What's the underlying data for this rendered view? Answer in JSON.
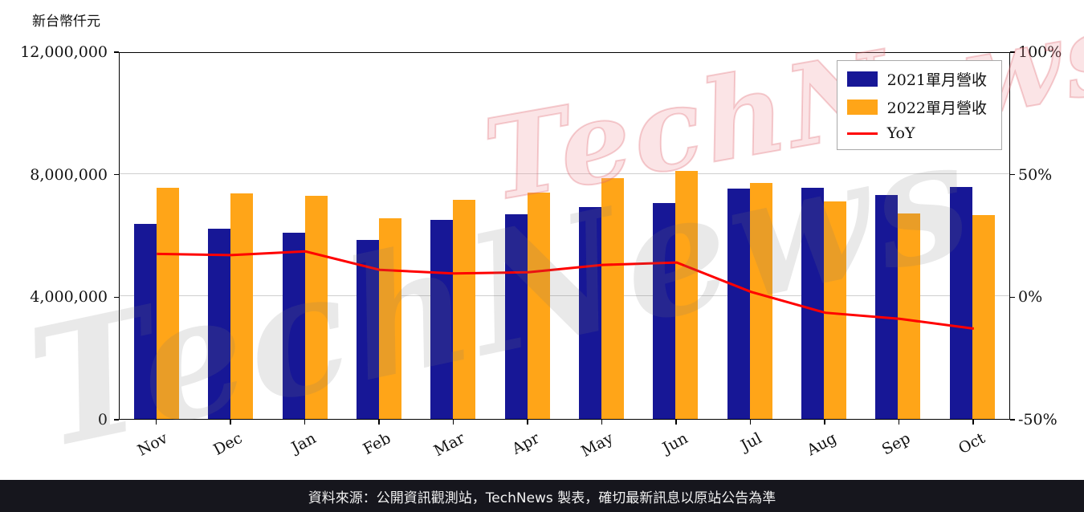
{
  "header": {
    "y_axis_unit_label": "新台幣仟元"
  },
  "watermark": {
    "text": "TechNews"
  },
  "footer": {
    "text": "資料來源：公開資訊觀測站，TechNews 製表，確切最新訊息以原站公告為準",
    "bg_color": "#16161d"
  },
  "colors": {
    "bar_2021": "#171796",
    "bar_2022": "#ffa518",
    "yoy_line": "#ff0000",
    "grid": "#cfcfcf",
    "axis": "#000000"
  },
  "chart_data": {
    "type": "bar",
    "title": "",
    "categories": [
      "Nov",
      "Dec",
      "Jan",
      "Feb",
      "Mar",
      "Apr",
      "May",
      "Jun",
      "Jul",
      "Aug",
      "Sep",
      "Oct"
    ],
    "series": [
      {
        "id": "2021-revenue",
        "name": "2021單月營收",
        "type": "bar",
        "color": "#171796",
        "axis": "left",
        "values": [
          6370000,
          6200000,
          6080000,
          5840000,
          6500000,
          6680000,
          6920000,
          7050000,
          7520000,
          7550000,
          7310000,
          7570000
        ]
      },
      {
        "id": "2022-revenue",
        "name": "2022單月營收",
        "type": "bar",
        "color": "#ffa518",
        "axis": "left",
        "values": [
          7540000,
          7360000,
          7280000,
          6550000,
          7150000,
          7390000,
          7850000,
          8100000,
          7700000,
          7100000,
          6720000,
          6650000
        ]
      },
      {
        "id": "yoy",
        "name": "YoY",
        "type": "line",
        "color": "#ff0000",
        "axis": "right",
        "values": [
          18.0,
          17.5,
          19.0,
          11.5,
          10.0,
          10.5,
          13.5,
          14.5,
          2.5,
          -6.0,
          -8.5,
          -12.5
        ]
      }
    ],
    "left_axis": {
      "min": 0,
      "max": 12000000,
      "tick_values": [
        0,
        4000000,
        8000000,
        12000000
      ],
      "ticks": [
        "0",
        "4,000,000",
        "8,000,000",
        "12,000,000"
      ]
    },
    "right_axis": {
      "min": -50,
      "max": 100,
      "tick_values": [
        -50,
        0,
        50,
        100
      ],
      "ticks": [
        "-50%",
        "0%",
        "50%",
        "100%"
      ]
    },
    "grid": true,
    "legend_position": "top-right"
  }
}
